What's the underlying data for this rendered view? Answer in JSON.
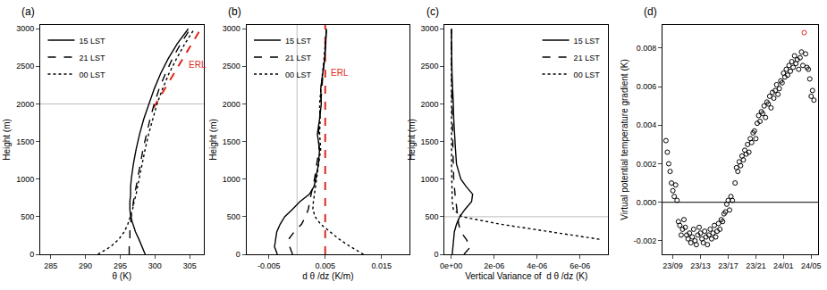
{
  "chart_data": [
    {
      "type": "line",
      "title": "(a)",
      "x_label": "θ (K)",
      "y_label": "Height (m)",
      "xlim": [
        283.5,
        307
      ],
      "xticks": [
        285,
        290,
        295,
        300,
        305
      ],
      "ylim": [
        0,
        3050
      ],
      "yticks": [
        0,
        500,
        1000,
        1500,
        2000,
        2500,
        3000
      ],
      "grid": false,
      "legend": "top left",
      "series": [
        {
          "name": "15 LST",
          "color": "#000000",
          "line_style": "solid",
          "x": [
            298.6,
            298.2,
            297.7,
            297.2,
            296.8,
            296.5,
            296.4,
            296.4,
            296.5,
            296.5,
            296.6,
            296.9,
            297.3,
            297.8,
            298.4,
            299.1,
            299.9,
            300.8,
            301.9,
            303.2,
            304.8
          ],
          "y": [
            0,
            100,
            200,
            300,
            400,
            500,
            600,
            700,
            800,
            900,
            1000,
            1200,
            1400,
            1600,
            1800,
            2000,
            2200,
            2400,
            2600,
            2800,
            3000
          ]
        },
        {
          "name": "21 LST",
          "color": "#000000",
          "line_style": "dash",
          "x": [
            296.3,
            296.3,
            296.4,
            296.4,
            296.5,
            296.6,
            296.8,
            296.9,
            297.1,
            297.3,
            297.5,
            297.9,
            298.3,
            298.8,
            299.3,
            299.9,
            300.6,
            301.5,
            302.5,
            303.7,
            305.1
          ],
          "y": [
            0,
            100,
            200,
            300,
            400,
            500,
            600,
            700,
            800,
            900,
            1000,
            1200,
            1400,
            1600,
            1800,
            2000,
            2200,
            2400,
            2600,
            2800,
            3000
          ]
        },
        {
          "name": "00 LST",
          "color": "#000000",
          "line_style": "dot",
          "x": [
            291.8,
            293.6,
            294.8,
            295.6,
            296.1,
            296.5,
            296.8,
            297.0,
            297.3,
            297.5,
            297.7,
            298.1,
            298.6,
            299.1,
            299.7,
            300.3,
            301.1,
            302.0,
            303.1,
            304.3,
            305.7
          ],
          "y": [
            0,
            100,
            200,
            300,
            400,
            500,
            600,
            700,
            800,
            900,
            1000,
            1200,
            1400,
            1600,
            1800,
            2000,
            2200,
            2400,
            2600,
            2800,
            3000
          ]
        }
      ],
      "reference_lines": [
        {
          "y": 2000,
          "color": "#bdbdbd",
          "line_style": "solid"
        },
        {
          "x": [
            299.8,
            306.6
          ],
          "y": [
            1950,
            3000
          ],
          "color": "#e0261b",
          "line_style": "dash",
          "label": "ERL"
        }
      ]
    },
    {
      "type": "line",
      "title": "(b)",
      "x_label": "d θ /dz (K/m)",
      "y_label": "Height (m)",
      "xlim": [
        -0.009,
        0.02
      ],
      "xticks": [
        -0.005,
        0.005,
        0.015
      ],
      "ylim": [
        0,
        3050
      ],
      "yticks": [
        0,
        500,
        1000,
        1500,
        2000,
        2500,
        3000
      ],
      "grid": false,
      "legend": "top left",
      "series": [
        {
          "name": "15 LST",
          "color": "#000000",
          "line_style": "solid",
          "x": [
            -0.0035,
            -0.004,
            -0.0038,
            -0.0036,
            -0.003,
            -0.0022,
            -0.0008,
            0.0005,
            0.0022,
            0.003,
            0.0033,
            0.0038,
            0.004,
            0.0036,
            0.004,
            0.0043,
            0.0042,
            0.0046,
            0.0049,
            0.0051,
            0.0052
          ],
          "y": [
            0,
            100,
            200,
            300,
            400,
            500,
            600,
            700,
            800,
            900,
            1000,
            1200,
            1400,
            1600,
            1800,
            2000,
            2200,
            2400,
            2600,
            2800,
            3000
          ]
        },
        {
          "name": "21 LST",
          "color": "#000000",
          "line_style": "dash",
          "x": [
            -0.0008,
            -0.0013,
            -0.0015,
            -0.0005,
            0.0008,
            0.0015,
            0.002,
            0.0022,
            0.0025,
            0.0028,
            0.0031,
            0.0035,
            0.0039,
            0.0038,
            0.004,
            0.0041,
            0.0043,
            0.0046,
            0.0049,
            0.0051,
            0.0052
          ],
          "y": [
            0,
            100,
            200,
            300,
            400,
            500,
            600,
            700,
            800,
            900,
            1000,
            1200,
            1400,
            1600,
            1800,
            2000,
            2200,
            2400,
            2600,
            2800,
            3000
          ]
        },
        {
          "name": "00 LST",
          "color": "#000000",
          "line_style": "dot",
          "x": [
            0.0118,
            0.0095,
            0.0075,
            0.0058,
            0.0042,
            0.0032,
            0.0028,
            0.0029,
            0.0031,
            0.0033,
            0.0035,
            0.0039,
            0.0042,
            0.004,
            0.0041,
            0.004,
            0.0042,
            0.0045,
            0.0048,
            0.005,
            0.0052
          ],
          "y": [
            0,
            100,
            200,
            300,
            400,
            500,
            600,
            700,
            800,
            900,
            1000,
            1200,
            1400,
            1600,
            1800,
            2000,
            2200,
            2400,
            2600,
            2800,
            3000
          ]
        }
      ],
      "reference_lines": [
        {
          "x": 0,
          "color": "#bdbdbd",
          "line_style": "solid"
        },
        {
          "x": 0.005,
          "color": "#e0261b",
          "line_style": "dash",
          "label": "ERL"
        }
      ]
    },
    {
      "type": "line",
      "title": "(c)",
      "x_label": "Vertical Variance of  d θ /dz (K)",
      "y_label": "Height (m)",
      "xlim": [
        -3e-07,
        7.3e-06
      ],
      "xticks": [
        {
          "value": 0,
          "label": "0e+00"
        },
        {
          "value": 2e-06,
          "label": "2e-06"
        },
        {
          "value": 4e-06,
          "label": "4e-06"
        },
        {
          "value": 6e-06,
          "label": "6e-06"
        }
      ],
      "ylim": [
        0,
        3050
      ],
      "yticks": [
        0,
        500,
        1000,
        1500,
        2000,
        2500,
        3000
      ],
      "grid": false,
      "legend": "top right",
      "series": [
        {
          "name": "15 LST",
          "color": "#000000",
          "line_style": "solid",
          "x": [
            5e-08,
            8e-08,
            1e-07,
            1.5e-07,
            2.5e-07,
            4e-07,
            6.5e-07,
            9.5e-07,
            1e-06,
            7e-07,
            4.5e-07,
            2.5e-07,
            2e-07,
            1.5e-07,
            1.2e-07,
            1e-07,
            6e-08,
            4e-08,
            3e-08,
            2e-08,
            1e-08
          ],
          "y": [
            0,
            100,
            200,
            300,
            400,
            500,
            600,
            700,
            800,
            900,
            1000,
            1200,
            1400,
            1600,
            1800,
            2000,
            2200,
            2400,
            2600,
            2800,
            3000
          ]
        },
        {
          "name": "21 LST",
          "color": "#000000",
          "line_style": "dash",
          "x": [
            6e-07,
            9e-07,
            7e-07,
            4.5e-07,
            3.5e-07,
            3e-07,
            2.5e-07,
            2e-07,
            1.8e-07,
            1.5e-07,
            1.2e-07,
            1e-07,
            8e-08,
            6e-08,
            5e-08,
            4e-08,
            3e-08,
            2e-08,
            2e-08,
            1e-08,
            1e-08
          ],
          "y": [
            0,
            100,
            200,
            300,
            400,
            500,
            600,
            700,
            800,
            900,
            1000,
            1200,
            1400,
            1600,
            1800,
            2000,
            2200,
            2400,
            2600,
            2800,
            3000
          ]
        },
        {
          "name": "00 LST",
          "color": "#000000",
          "line_style": "dot",
          "x": [
            null,
            null,
            6.9e-06,
            4.6e-06,
            2.3e-06,
            5e-07,
            1e-07,
            5e-08,
            4e-08,
            3e-08,
            3e-08,
            2e-08,
            2e-08,
            2e-08,
            1e-08,
            1e-08,
            1e-08,
            1e-08,
            1e-08,
            1e-08,
            1e-08
          ],
          "y": [
            0,
            100,
            200,
            300,
            400,
            500,
            600,
            700,
            800,
            900,
            1000,
            1200,
            1400,
            1600,
            1800,
            2000,
            2200,
            2400,
            2600,
            2800,
            3000
          ]
        }
      ],
      "reference_lines": [
        {
          "y": 500,
          "color": "#bdbdbd",
          "line_style": "solid"
        }
      ]
    },
    {
      "type": "scatter",
      "title": "(d)",
      "y_label": "Virtual potential temperature gradient (K)",
      "xlim": [
        7.5,
        30
      ],
      "xticks": [
        {
          "value": 9,
          "label": "23/09"
        },
        {
          "value": 13,
          "label": "23/13"
        },
        {
          "value": 17,
          "label": "23/17"
        },
        {
          "value": 21,
          "label": "23/21"
        },
        {
          "value": 25,
          "label": "24/01"
        },
        {
          "value": 29,
          "label": "24/05"
        }
      ],
      "ylim": [
        -0.0027,
        0.0092
      ],
      "yticks": [
        -0.002,
        {
          "value": 0,
          "label": "0.000"
        },
        0.002,
        0.004,
        0.006,
        0.008
      ],
      "grid": false,
      "series": [
        {
          "color": "#000000",
          "marker": "circle-open",
          "x": [
            8.0,
            8.2,
            8.4,
            8.6,
            8.8,
            9.0,
            9.2,
            9.4,
            9.6,
            9.8,
            10.0,
            10.2,
            10.4,
            10.6,
            10.8,
            11.0,
            11.2,
            11.4,
            11.6,
            11.8,
            12.0,
            12.2,
            12.4,
            12.6,
            12.8,
            13.0,
            13.2,
            13.4,
            13.6,
            13.8,
            14.0,
            14.2,
            14.4,
            14.6,
            14.8,
            15.0,
            15.2,
            15.4,
            15.6,
            15.8,
            16.0,
            16.2,
            16.4,
            16.6,
            16.8,
            17.0,
            17.2,
            17.4,
            17.6,
            18.0,
            18.2,
            18.4,
            18.6,
            18.8,
            19.0,
            19.2,
            19.4,
            19.6,
            19.8,
            20.0,
            20.2,
            20.4,
            20.6,
            20.8,
            21.0,
            21.2,
            21.4,
            21.6,
            21.8,
            22.0,
            22.2,
            22.4,
            22.6,
            22.8,
            23.0,
            23.2,
            23.4,
            23.6,
            23.8,
            24.0,
            24.2,
            24.4,
            24.6,
            24.8,
            25.0,
            25.2,
            25.4,
            25.6,
            25.8,
            26.0,
            26.2,
            26.4,
            26.6,
            26.8,
            27.0,
            27.2,
            27.4,
            27.6,
            27.8,
            28.2,
            28.4,
            28.6,
            28.8,
            29.0,
            29.2,
            29.4
          ],
          "y": [
            0.0032,
            0.0026,
            0.002,
            0.0016,
            0.001,
            0.0006,
            0.0003,
            0.0009,
            0.0001,
            -0.001,
            -0.0012,
            -0.0017,
            -0.0014,
            -0.0009,
            -0.0013,
            -0.0017,
            -0.0019,
            -0.0016,
            -0.0021,
            -0.0018,
            -0.0014,
            -0.002,
            -0.0022,
            -0.0017,
            -0.0013,
            -0.0016,
            -0.0019,
            -0.0021,
            -0.0015,
            -0.0018,
            -0.0022,
            -0.0017,
            -0.0014,
            -0.0019,
            -0.0016,
            -0.0012,
            -0.0018,
            -0.0015,
            -0.0011,
            -0.0014,
            -0.0009,
            -0.001,
            -0.0006,
            -0.0005,
            -0.0001,
            0.0001,
            -0.0004,
            0.0003,
            0.0001,
            0.001,
            0.0018,
            0.0016,
            0.0021,
            0.0019,
            0.0024,
            0.0022,
            0.0027,
            0.0025,
            0.003,
            0.0026,
            0.0033,
            0.0031,
            0.0036,
            0.0037,
            0.0033,
            0.0041,
            0.0045,
            0.0042,
            0.0047,
            0.0046,
            0.005,
            0.0044,
            0.0052,
            0.0051,
            0.0055,
            0.0049,
            0.0057,
            0.0054,
            0.0058,
            0.0061,
            0.0056,
            0.0059,
            0.0063,
            0.0062,
            0.0067,
            0.0065,
            0.0069,
            0.0066,
            0.0071,
            0.0068,
            0.0073,
            0.007,
            0.0076,
            0.0072,
            0.0074,
            0.0069,
            0.0075,
            0.0078,
            0.0071,
            0.0077,
            0.007,
            0.0069,
            0.0064,
            0.0055,
            0.0058,
            0.0053
          ]
        },
        {
          "color": "#e0261b",
          "marker": "circle-open",
          "x": [
            28.0
          ],
          "y": [
            0.0088
          ]
        }
      ],
      "reference_lines": [
        {
          "y": 0,
          "color": "#000000",
          "line_style": "solid"
        }
      ]
    }
  ]
}
